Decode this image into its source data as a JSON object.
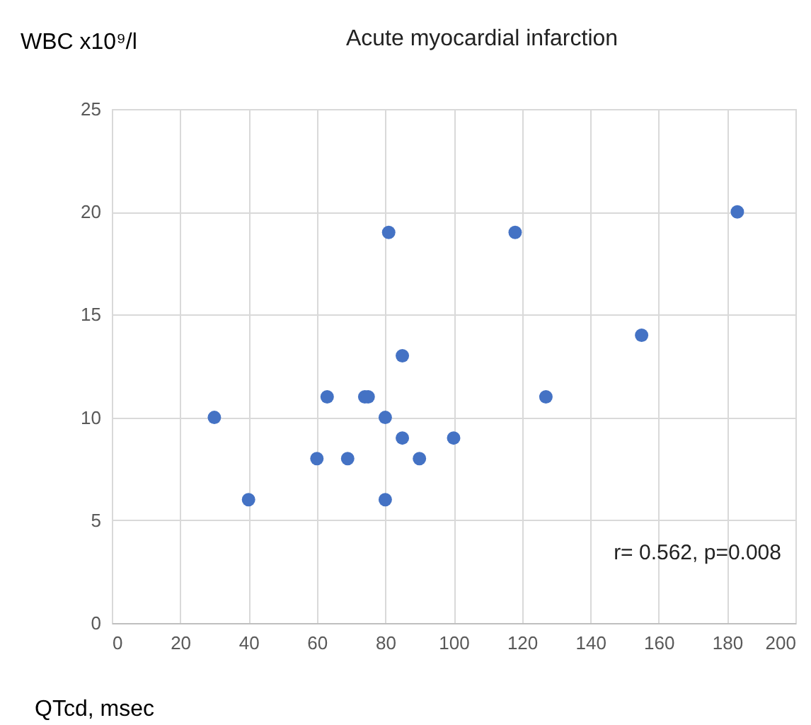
{
  "chart_data": {
    "type": "scatter",
    "title": "Acute myocardial infarction",
    "xlabel": "QTcd, msec",
    "ylabel": "WBC x10⁹/l",
    "x": [
      30,
      40,
      60,
      63,
      69,
      74,
      75,
      80,
      80,
      81,
      85,
      85,
      90,
      100,
      118,
      127,
      155,
      183
    ],
    "series": [
      {
        "color": "#4472c4",
        "values": [
          10,
          6,
          8,
          11,
          8,
          11,
          11,
          10,
          6,
          19,
          13,
          9,
          8,
          9,
          19,
          11,
          14,
          20
        ]
      }
    ],
    "xlim": [
      0,
      200
    ],
    "xticks": [
      0,
      20,
      40,
      60,
      80,
      100,
      120,
      140,
      160,
      180,
      200
    ],
    "ylim": [
      0,
      25
    ],
    "yticks": [
      0,
      5,
      10,
      15,
      20,
      25
    ],
    "grid": true,
    "marker": "circle",
    "legend": false,
    "annotations": [
      "r= 0.562, p=0.008"
    ]
  }
}
